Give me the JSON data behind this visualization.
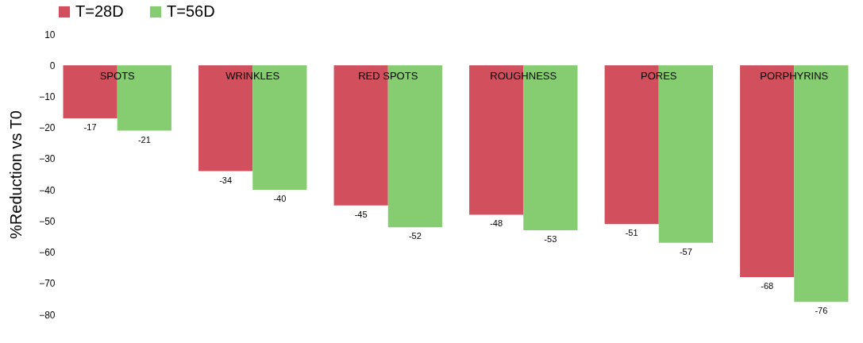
{
  "chart_data": {
    "type": "bar",
    "ylabel": "%Reduction vs T0",
    "categories": [
      "SPOTS",
      "WRINKLES",
      "RED SPOTS",
      "ROUGHNESS",
      "PORES",
      "PORPHYRINS"
    ],
    "series": [
      {
        "name": "T=28D",
        "color": "#d2505e",
        "values": [
          -17,
          -34,
          -45,
          -48,
          -51,
          -68
        ]
      },
      {
        "name": "T=56D",
        "color": "#86cc70",
        "values": [
          -21,
          -40,
          -52,
          -53,
          -57,
          -76
        ]
      }
    ],
    "ylim": [
      -80,
      10
    ],
    "yticks": [
      -80,
      -70,
      -60,
      -50,
      -40,
      -30,
      -20,
      -10,
      0,
      10
    ],
    "grid": false,
    "legend": "top",
    "data_labels": true
  }
}
